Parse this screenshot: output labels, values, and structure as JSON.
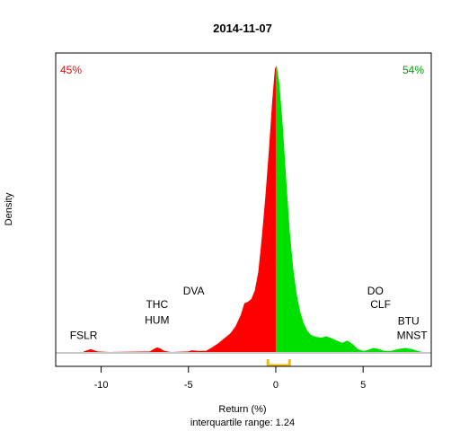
{
  "chart_data": {
    "type": "area",
    "title": "2014-11-07",
    "xlabel": "Return (%)",
    "ylabel": "Density",
    "caption": "interquartile range: 1.24",
    "xlim": [
      -12.6,
      8.9
    ],
    "ylim": [
      0,
      1
    ],
    "x_ticks": [
      -10,
      -5,
      0,
      5
    ],
    "x_tick_labels": [
      "-10",
      "-5",
      "0",
      "5"
    ],
    "split_at": 0,
    "negative_share_label": "45%",
    "positive_share_label": "54%",
    "negative_color": "#ff0000",
    "positive_color": "#00e000",
    "iqr_color": "#f0c000",
    "baseline_color": "#c8c8c8",
    "iqr": [
      -0.45,
      0.79
    ],
    "density": [
      [
        -11.0,
        0.002
      ],
      [
        -10.8,
        0.006
      ],
      [
        -10.6,
        0.01
      ],
      [
        -10.4,
        0.006
      ],
      [
        -10.2,
        0.002
      ],
      [
        -9.5,
        0.0
      ],
      [
        -7.2,
        0.002
      ],
      [
        -7.0,
        0.01
      ],
      [
        -6.8,
        0.016
      ],
      [
        -6.6,
        0.012
      ],
      [
        -6.4,
        0.004
      ],
      [
        -6.0,
        0.0
      ],
      [
        -5.0,
        0.002
      ],
      [
        -4.8,
        0.006
      ],
      [
        -4.5,
        0.004
      ],
      [
        -4.0,
        0.004
      ],
      [
        -3.7,
        0.014
      ],
      [
        -3.3,
        0.03
      ],
      [
        -3.0,
        0.045
      ],
      [
        -2.6,
        0.065
      ],
      [
        -2.3,
        0.09
      ],
      [
        -2.0,
        0.13
      ],
      [
        -1.8,
        0.17
      ],
      [
        -1.6,
        0.175
      ],
      [
        -1.4,
        0.185
      ],
      [
        -1.2,
        0.215
      ],
      [
        -1.0,
        0.28
      ],
      [
        -0.8,
        0.4
      ],
      [
        -0.6,
        0.54
      ],
      [
        -0.4,
        0.7
      ],
      [
        -0.2,
        0.88
      ],
      [
        -0.05,
        0.99
      ],
      [
        0.05,
        1.0
      ],
      [
        0.2,
        0.94
      ],
      [
        0.4,
        0.79
      ],
      [
        0.6,
        0.6
      ],
      [
        0.8,
        0.42
      ],
      [
        1.0,
        0.29
      ],
      [
        1.2,
        0.2
      ],
      [
        1.4,
        0.14
      ],
      [
        1.6,
        0.1
      ],
      [
        1.8,
        0.075
      ],
      [
        2.0,
        0.06
      ],
      [
        2.3,
        0.053
      ],
      [
        2.6,
        0.05
      ],
      [
        2.9,
        0.055
      ],
      [
        3.2,
        0.048
      ],
      [
        3.5,
        0.04
      ],
      [
        3.8,
        0.032
      ],
      [
        4.1,
        0.04
      ],
      [
        4.4,
        0.028
      ],
      [
        4.7,
        0.01
      ],
      [
        5.0,
        0.004
      ],
      [
        5.2,
        0.006
      ],
      [
        5.6,
        0.014
      ],
      [
        5.9,
        0.01
      ],
      [
        6.2,
        0.004
      ],
      [
        6.6,
        0.004
      ],
      [
        7.0,
        0.01
      ],
      [
        7.4,
        0.014
      ],
      [
        7.8,
        0.01
      ],
      [
        8.1,
        0.004
      ],
      [
        8.4,
        0.0
      ]
    ],
    "annotations": [
      {
        "label": "FSLR",
        "x": -11.0,
        "level": 0.045
      },
      {
        "label": "HUM",
        "x": -6.8,
        "level": 0.099
      },
      {
        "label": "THC",
        "x": -6.8,
        "level": 0.153
      },
      {
        "label": "DVA",
        "x": -4.7,
        "level": 0.201
      },
      {
        "label": "BTU",
        "x": 7.6,
        "level": 0.096
      },
      {
        "label": "MNST",
        "x": 7.8,
        "level": 0.046
      },
      {
        "label": "CLF",
        "x": 6.0,
        "level": 0.153
      },
      {
        "label": "DO",
        "x": 5.7,
        "level": 0.201
      }
    ]
  }
}
